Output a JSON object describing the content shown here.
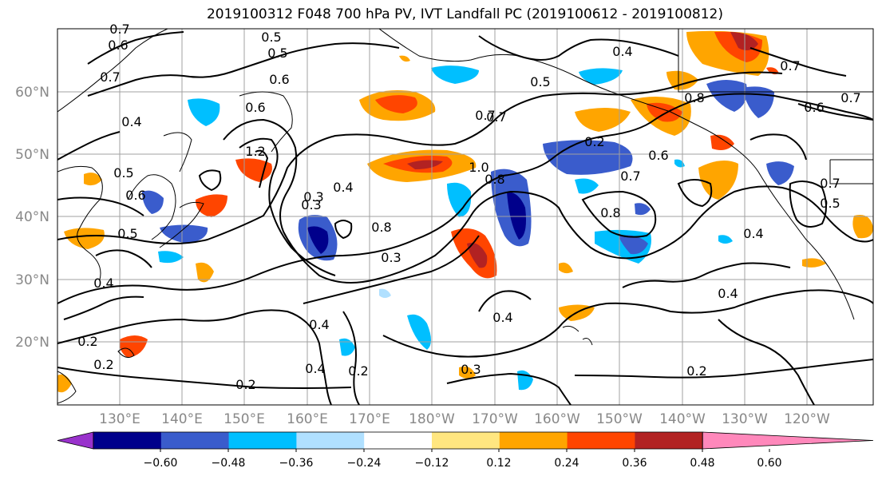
{
  "title": "2019100312 F048 700 hPa PV, IVT Landfall PC (2019100612 - 2019100812)",
  "lat_labels": [
    "60°N",
    "50°N",
    "40°N",
    "30°N",
    "20°N"
  ],
  "lon_labels": [
    "130°E",
    "140°E",
    "150°E",
    "160°E",
    "170°E",
    "180°W",
    "170°W",
    "160°W",
    "150°W",
    "140°W",
    "130°W",
    "120°W"
  ],
  "colorbar": {
    "tick_labels": [
      "−0.60",
      "−0.48",
      "−0.36",
      "−0.24",
      "−0.12",
      "0.12",
      "0.24",
      "0.36",
      "0.48",
      "0.60"
    ],
    "colors": [
      "#9932cc",
      "#00008b",
      "#3a5ccc",
      "#00bfff",
      "#b0e0ff",
      "#ffffff",
      "#ffe680",
      "#ffa500",
      "#ff4500",
      "#b22222",
      "#ff88bb"
    ]
  },
  "contour_labels": [
    "0.7",
    "0.6",
    "0.5",
    "0.5",
    "0.7",
    "0.6",
    "0.6",
    "0.4",
    "0.5",
    "0.4",
    "0.5",
    "0.4",
    "0.2",
    "0.2",
    "0.2",
    "0.4",
    "0.2",
    "0.3",
    "0.3",
    "0.4",
    "0.8",
    "1.0",
    "0.8",
    "0.7",
    "0.3",
    "0.2",
    "0.6",
    "0.7",
    "0.8",
    "0.4",
    "0.6",
    "0.5",
    "0.6",
    "0.7",
    "0.7",
    "0.8",
    "0.7",
    "0.5",
    "0.4",
    "0.7",
    "1.2",
    "0.3",
    "0.4",
    "0.2",
    "0.4"
  ],
  "colors": {
    "grid": "#a0a0a0",
    "contour": "#000000",
    "coast": "#000000"
  }
}
